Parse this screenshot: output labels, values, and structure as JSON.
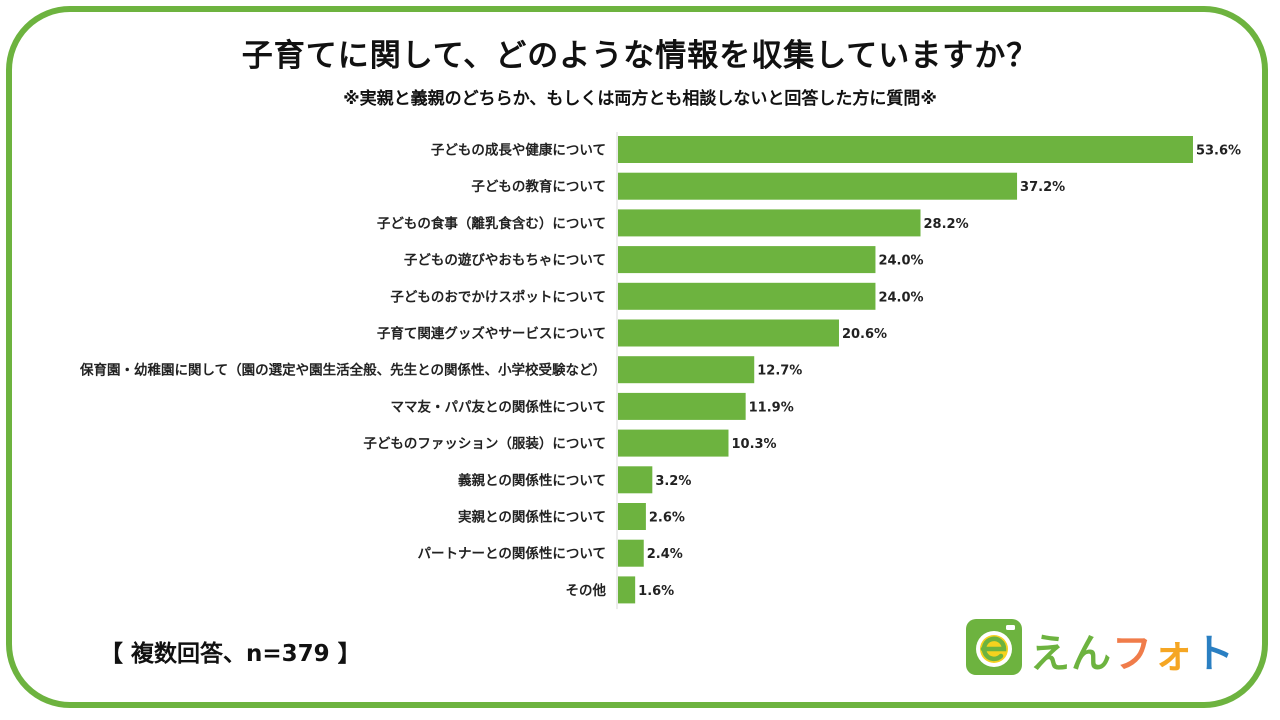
{
  "title": "子育てに関して、どのような情報を収集していますか？",
  "subtitle": "※実親と義親のどちらか、もしくは両方とも相談しないと回答した方に質問※",
  "footnote": "【 複数回答、n=379 】",
  "logo": {
    "text_parts": [
      {
        "text": "えん",
        "color": "#6db33f"
      },
      {
        "text": "フ",
        "color": "#f07c4a"
      },
      {
        "text": "ォ",
        "color": "#f5a623"
      },
      {
        "text": "ト",
        "color": "#2a7fc2"
      }
    ],
    "icon": "camera-e-icon"
  },
  "colors": {
    "bar": "#6db33f",
    "frame": "#6db33f"
  },
  "chart_data": {
    "type": "bar",
    "orientation": "horizontal",
    "categories": [
      "子どもの成長や健康について",
      "子どもの教育について",
      "子どもの食事（離乳食含む）について",
      "子どもの遊びやおもちゃについて",
      "子どものおでかけスポットについて",
      "子育て関連グッズやサービスについて",
      "保育園・幼稚園に関して（園の選定や園生活全般、先生との関係性、小学校受験など）",
      "ママ友・パパ友との関係性について",
      "子どものファッション（服装）について",
      "義親との関係性について",
      "実親との関係性について",
      "パートナーとの関係性について",
      "その他"
    ],
    "values": [
      53.6,
      37.2,
      28.2,
      24.0,
      24.0,
      20.6,
      12.7,
      11.9,
      10.3,
      3.2,
      2.6,
      2.4,
      1.6
    ],
    "value_labels": [
      "53.6%",
      "37.2%",
      "28.2%",
      "24.0%",
      "24.0%",
      "20.6%",
      "12.7%",
      "11.9%",
      "10.3%",
      "3.2%",
      "2.6%",
      "2.4%",
      "1.6%"
    ],
    "xlim": [
      0,
      55
    ],
    "grid": false,
    "legend": "none"
  }
}
